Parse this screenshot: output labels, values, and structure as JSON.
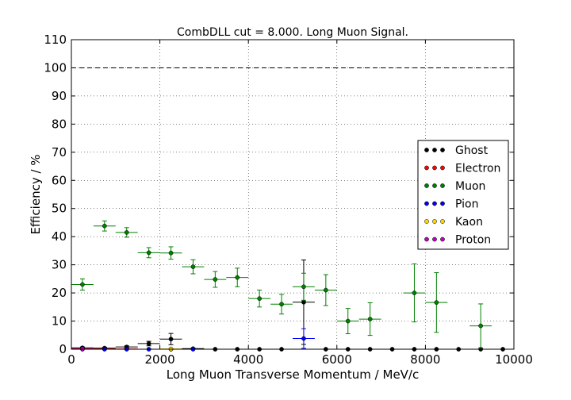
{
  "chart_data": {
    "type": "scatter",
    "title": "CombDLL cut = 8.000. Long Muon Signal.",
    "xlabel": "Long Muon Transverse Momentum / MeV/c",
    "ylabel": "Efficiency / %",
    "xlim": [
      0,
      10000
    ],
    "ylim": [
      0,
      110
    ],
    "xticks": [
      0,
      2000,
      4000,
      6000,
      8000,
      10000
    ],
    "yticks": [
      0,
      10,
      20,
      30,
      40,
      50,
      60,
      70,
      80,
      90,
      100,
      110
    ],
    "grid": true,
    "reference_line": {
      "y": 100,
      "style": "dashed"
    },
    "legend_position": "center-right",
    "series": [
      {
        "name": "Ghost",
        "color": "#000000",
        "points": [
          {
            "x": 250,
            "y": 0.5,
            "xerr": 250,
            "yerr": 0.3
          },
          {
            "x": 750,
            "y": 0.4,
            "xerr": 250,
            "yerr": 0.3
          },
          {
            "x": 1250,
            "y": 0.8,
            "xerr": 250,
            "yerr": 0.4
          },
          {
            "x": 1750,
            "y": 2.0,
            "xerr": 250,
            "yerr": 0.8
          },
          {
            "x": 2250,
            "y": 3.6,
            "xerr": 250,
            "yerr": 2.0
          },
          {
            "x": 2750,
            "y": 0.2,
            "xerr": 250,
            "yerr": 0.2
          },
          {
            "x": 3250,
            "y": 0.0,
            "xerr": 250,
            "yerr": 0
          },
          {
            "x": 3750,
            "y": 0.0,
            "xerr": 250,
            "yerr": 0
          },
          {
            "x": 4250,
            "y": 0.0,
            "xerr": 250,
            "yerr": 0
          },
          {
            "x": 4750,
            "y": 0.0,
            "xerr": 250,
            "yerr": 0
          },
          {
            "x": 5250,
            "y": 16.7,
            "xerr": 250,
            "yerr": 15.0
          },
          {
            "x": 5750,
            "y": 0.0,
            "xerr": 250,
            "yerr": 0
          },
          {
            "x": 6250,
            "y": 0.0,
            "xerr": 250,
            "yerr": 0
          },
          {
            "x": 6750,
            "y": 0.0,
            "xerr": 250,
            "yerr": 0
          },
          {
            "x": 7250,
            "y": 0.0,
            "xerr": 250,
            "yerr": 0
          },
          {
            "x": 7750,
            "y": 0.0,
            "xerr": 250,
            "yerr": 0
          },
          {
            "x": 8250,
            "y": 0.0,
            "xerr": 250,
            "yerr": 0
          },
          {
            "x": 8750,
            "y": 0.0,
            "xerr": 250,
            "yerr": 0
          },
          {
            "x": 9250,
            "y": 0.0,
            "xerr": 250,
            "yerr": 0
          },
          {
            "x": 9750,
            "y": 0.0,
            "xerr": 250,
            "yerr": 0
          }
        ]
      },
      {
        "name": "Electron",
        "color": "#ff0000",
        "points": [
          {
            "x": 250,
            "y": 0.2,
            "xerr": 250,
            "yerr": 0.1
          },
          {
            "x": 750,
            "y": 0.1,
            "xerr": 250,
            "yerr": 0.1
          },
          {
            "x": 1250,
            "y": 0.1,
            "xerr": 250,
            "yerr": 0.1
          }
        ]
      },
      {
        "name": "Muon",
        "color": "#008000",
        "points": [
          {
            "x": 250,
            "y": 23.0,
            "xerr": 250,
            "yerr": 2.0
          },
          {
            "x": 750,
            "y": 43.8,
            "xerr": 250,
            "yerr": 1.8
          },
          {
            "x": 1250,
            "y": 41.5,
            "xerr": 250,
            "yerr": 1.7
          },
          {
            "x": 1750,
            "y": 34.3,
            "xerr": 250,
            "yerr": 1.8
          },
          {
            "x": 2250,
            "y": 34.2,
            "xerr": 250,
            "yerr": 2.2
          },
          {
            "x": 2750,
            "y": 29.3,
            "xerr": 250,
            "yerr": 2.5
          },
          {
            "x": 3250,
            "y": 24.8,
            "xerr": 250,
            "yerr": 2.8
          },
          {
            "x": 3750,
            "y": 25.5,
            "xerr": 250,
            "yerr": 3.3
          },
          {
            "x": 4250,
            "y": 18.0,
            "xerr": 250,
            "yerr": 3.0
          },
          {
            "x": 4750,
            "y": 16.0,
            "xerr": 250,
            "yerr": 3.5
          },
          {
            "x": 5250,
            "y": 22.2,
            "xerr": 250,
            "yerr": 4.8
          },
          {
            "x": 5750,
            "y": 21.0,
            "xerr": 250,
            "yerr": 5.5
          },
          {
            "x": 6250,
            "y": 10.0,
            "xerr": 250,
            "yerr": 4.5
          },
          {
            "x": 6750,
            "y": 10.7,
            "xerr": 250,
            "yerr": 5.8
          },
          {
            "x": 7750,
            "y": 20.0,
            "xerr": 250,
            "yerr": 10.3
          },
          {
            "x": 8250,
            "y": 16.6,
            "xerr": 250,
            "yerr": 10.6
          },
          {
            "x": 9250,
            "y": 8.3,
            "xerr": 250,
            "yerr": 7.8
          }
        ]
      },
      {
        "name": "Pion",
        "color": "#0000ff",
        "points": [
          {
            "x": 250,
            "y": 0.0,
            "xerr": 250,
            "yerr": 0
          },
          {
            "x": 750,
            "y": 0.0,
            "xerr": 250,
            "yerr": 0
          },
          {
            "x": 1250,
            "y": 0.0,
            "xerr": 250,
            "yerr": 0
          },
          {
            "x": 1750,
            "y": 0.0,
            "xerr": 250,
            "yerr": 0
          },
          {
            "x": 2250,
            "y": 0.0,
            "xerr": 250,
            "yerr": 0
          },
          {
            "x": 2750,
            "y": 0.0,
            "xerr": 250,
            "yerr": 0
          },
          {
            "x": 5250,
            "y": 3.8,
            "xerr": 250,
            "yerr": 3.5
          }
        ]
      },
      {
        "name": "Kaon",
        "color": "#ffd700",
        "points": [
          {
            "x": 2250,
            "y": 0.1,
            "xerr": 250,
            "yerr": 0.1
          }
        ]
      },
      {
        "name": "Proton",
        "color": "#bf00bf",
        "points": [
          {
            "x": 250,
            "y": 0.1,
            "xerr": 250,
            "yerr": 0.1
          }
        ]
      }
    ]
  }
}
